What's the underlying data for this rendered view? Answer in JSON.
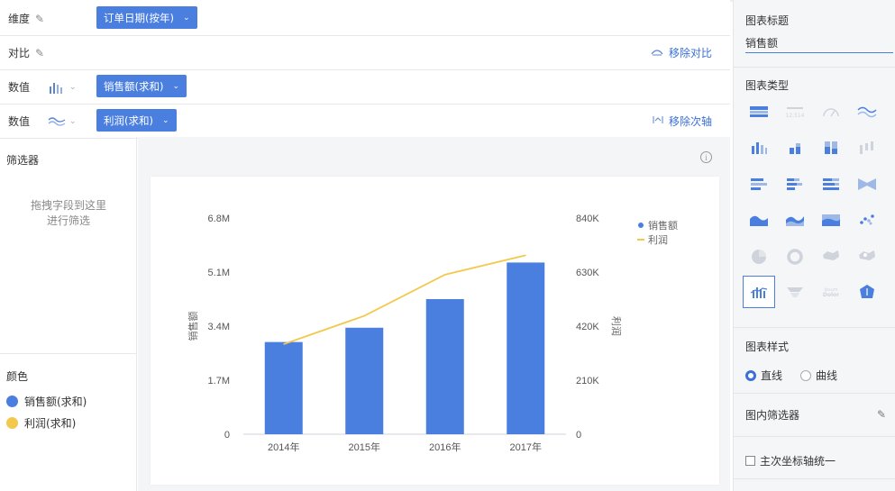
{
  "rows": {
    "dimension": {
      "label": "维度",
      "chip": "订单日期(按年)"
    },
    "compare": {
      "label": "对比",
      "action": "移除对比"
    },
    "value1": {
      "label": "数值",
      "chip": "销售额(求和)"
    },
    "value2": {
      "label": "数值",
      "chip": "利润(求和)",
      "action": "移除次轴"
    }
  },
  "filter": {
    "title": "筛选器",
    "hint_line1": "拖拽字段到这里",
    "hint_line2": "进行筛选"
  },
  "color": {
    "title": "颜色",
    "items": [
      {
        "label": "销售额(求和)",
        "color": "#4a7fe0"
      },
      {
        "label": "利润(求和)",
        "color": "#f2c94c"
      }
    ]
  },
  "info_icon": "i",
  "right_panel": {
    "chart_title_label": "图表标题",
    "chart_title_value": "销售额",
    "chart_type_label": "图表类型",
    "chart_style_label": "图表样式",
    "style_options": [
      "直线",
      "曲线"
    ],
    "style_selected": "直线",
    "inner_filter_label": "图内筛选器",
    "unify_axis_label": "主次坐标轴统一"
  },
  "chart_data": {
    "type": "bar+line",
    "categories": [
      "2014年",
      "2015年",
      "2016年",
      "2017年"
    ],
    "series": [
      {
        "name": "销售额",
        "type": "bar",
        "axis": "left",
        "color": "#4a7fe0",
        "values": [
          2900000,
          3350000,
          4250000,
          5400000
        ]
      },
      {
        "name": "利润",
        "type": "line",
        "axis": "right",
        "color": "#f2c94c",
        "values": [
          350000,
          460000,
          620000,
          695000
        ]
      }
    ],
    "left_axis": {
      "label": "销售额",
      "ticks": [
        "0",
        "1.7M",
        "3.4M",
        "5.1M",
        "6.8M"
      ],
      "range": [
        0,
        6800000
      ]
    },
    "right_axis": {
      "label": "利润",
      "ticks": [
        "0",
        "210K",
        "420K",
        "630K",
        "840K"
      ],
      "range": [
        0,
        840000
      ]
    },
    "legend": [
      "销售额",
      "利润"
    ],
    "legend_position": "top-right"
  }
}
